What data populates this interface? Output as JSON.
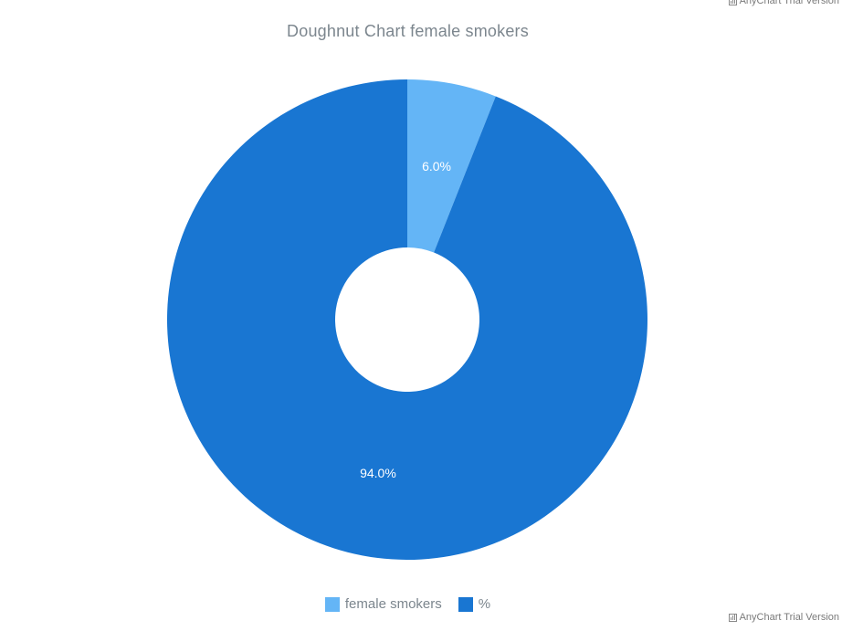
{
  "watermark": "AnyChart Trial Version",
  "chart_data": {
    "type": "pie",
    "variant": "doughnut",
    "title": "Doughnut Chart female smokers",
    "slices": [
      {
        "name": "female smokers",
        "value": 6.0,
        "label": "6.0%",
        "color": "#64b5f6"
      },
      {
        "name": "%",
        "value": 94.0,
        "label": "94.0%",
        "color": "#1976d2"
      }
    ],
    "legend_position": "bottom-center"
  }
}
